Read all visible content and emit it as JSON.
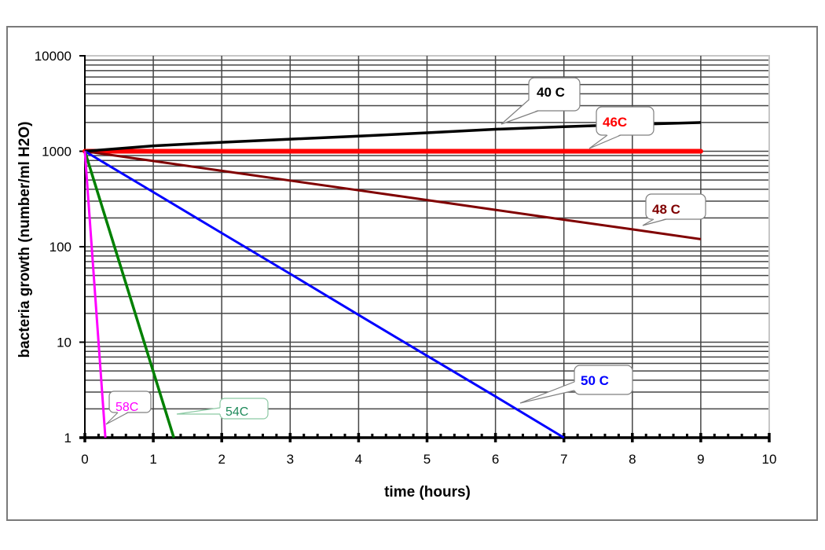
{
  "chart_data": {
    "type": "line",
    "title": "",
    "xlabel": "time (hours)",
    "ylabel": "bacteria growth (number/ml H2O)",
    "xlim": [
      0,
      10
    ],
    "ylim": [
      1,
      10000
    ],
    "yscale": "log",
    "grid": true,
    "legend": "callout labels on lines",
    "x_ticks": [
      0,
      1,
      2,
      3,
      4,
      5,
      6,
      7,
      8,
      9,
      10
    ],
    "x_tick_labels": [
      "0",
      "1",
      "2",
      "3",
      "4",
      "5",
      "6",
      "7",
      "8",
      "9",
      "10"
    ],
    "y_ticks": [
      1,
      10,
      100,
      1000,
      10000
    ],
    "y_tick_labels": [
      "1",
      "10",
      "100",
      "1000",
      "10000"
    ],
    "series": [
      {
        "name": "40 C",
        "color": "#000000",
        "x": [
          0,
          1,
          2,
          3,
          4,
          5,
          6,
          7,
          8,
          9
        ],
        "values": [
          1000,
          1140,
          1240,
          1340,
          1440,
          1560,
          1700,
          1810,
          1910,
          2000
        ]
      },
      {
        "name": "46C",
        "color": "#ff0000",
        "x": [
          0,
          9
        ],
        "values": [
          1000,
          1000
        ]
      },
      {
        "name": "48 C",
        "color": "#800000",
        "x": [
          0,
          1,
          2,
          3,
          4,
          5,
          6,
          7,
          8,
          9
        ],
        "values": [
          1000,
          790,
          624,
          493,
          390,
          308,
          243,
          192,
          152,
          120
        ]
      },
      {
        "name": "50 C",
        "color": "#0000ff",
        "x": [
          0,
          1,
          2,
          3,
          4,
          5,
          6,
          7
        ],
        "values": [
          1000,
          373,
          139,
          52,
          19.3,
          7.2,
          2.7,
          1
        ]
      },
      {
        "name": "54C",
        "color": "#008000",
        "x": [
          0,
          1.3
        ],
        "values": [
          1000,
          1
        ]
      },
      {
        "name": "58C",
        "color": "#ff00ff",
        "x": [
          0,
          0.3
        ],
        "values": [
          1000,
          1
        ]
      }
    ],
    "annotations": [
      {
        "text": "40 C",
        "color": "#000000"
      },
      {
        "text": "46C",
        "color": "#ff0000"
      },
      {
        "text": "48 C",
        "color": "#800000"
      },
      {
        "text": "50 C",
        "color": "#0000ff"
      },
      {
        "text": "54C",
        "color": "#1e8a5a"
      },
      {
        "text": "58C",
        "color": "#ff00ff"
      }
    ]
  }
}
